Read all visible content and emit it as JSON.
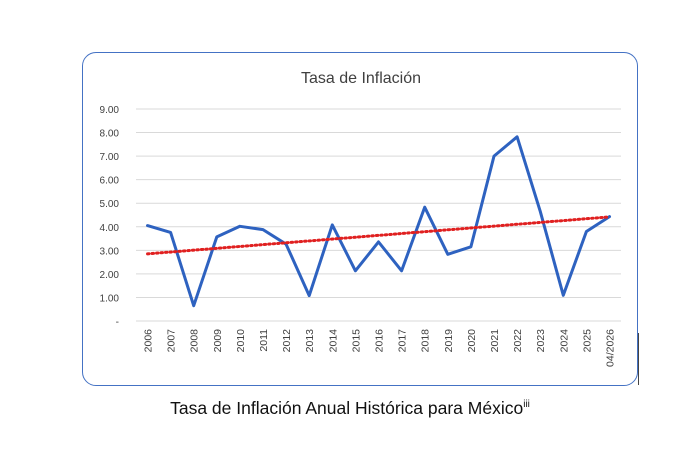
{
  "caption": {
    "text": "Tasa de Inflación Anual Histórica para México",
    "superscript": "iii"
  },
  "colors": {
    "frame": "#4472c4",
    "series_line": "#2e62c0",
    "trendline": "#e02020",
    "grid": "#d9d9d9"
  },
  "chart_data": {
    "type": "line",
    "title": "Tasa de Inflación",
    "xlabel": "",
    "ylabel": "",
    "categories": [
      "2006",
      "2007",
      "2008",
      "2009",
      "2010",
      "2011",
      "2012",
      "2013",
      "2014",
      "2015",
      "2016",
      "2017",
      "2018",
      "2019",
      "2020",
      "2021",
      "2022",
      "2023",
      "2024",
      "2025",
      "04/2026"
    ],
    "series": [
      {
        "values": [
          4.05,
          3.76,
          0.65,
          3.57,
          4.02,
          3.88,
          3.26,
          1.08,
          4.08,
          2.13,
          3.36,
          2.13,
          4.83,
          2.83,
          3.15,
          7.0,
          7.82,
          4.66,
          1.09,
          3.8,
          4.43
        ]
      }
    ],
    "trendline": {
      "style": "dotted",
      "start": 2.85,
      "end": 4.42
    },
    "ylim": [
      0,
      9
    ],
    "yticks": [
      {
        "value": 0,
        "label": "-"
      },
      {
        "value": 1,
        "label": "1.00"
      },
      {
        "value": 2,
        "label": "2.00"
      },
      {
        "value": 3,
        "label": "3.00"
      },
      {
        "value": 4,
        "label": "4.00"
      },
      {
        "value": 5,
        "label": "5.00"
      },
      {
        "value": 6,
        "label": "6.00"
      },
      {
        "value": 7,
        "label": "7.00"
      },
      {
        "value": 8,
        "label": "8.00"
      },
      {
        "value": 9,
        "label": "9.00"
      }
    ],
    "grid": true,
    "legend": "none"
  }
}
